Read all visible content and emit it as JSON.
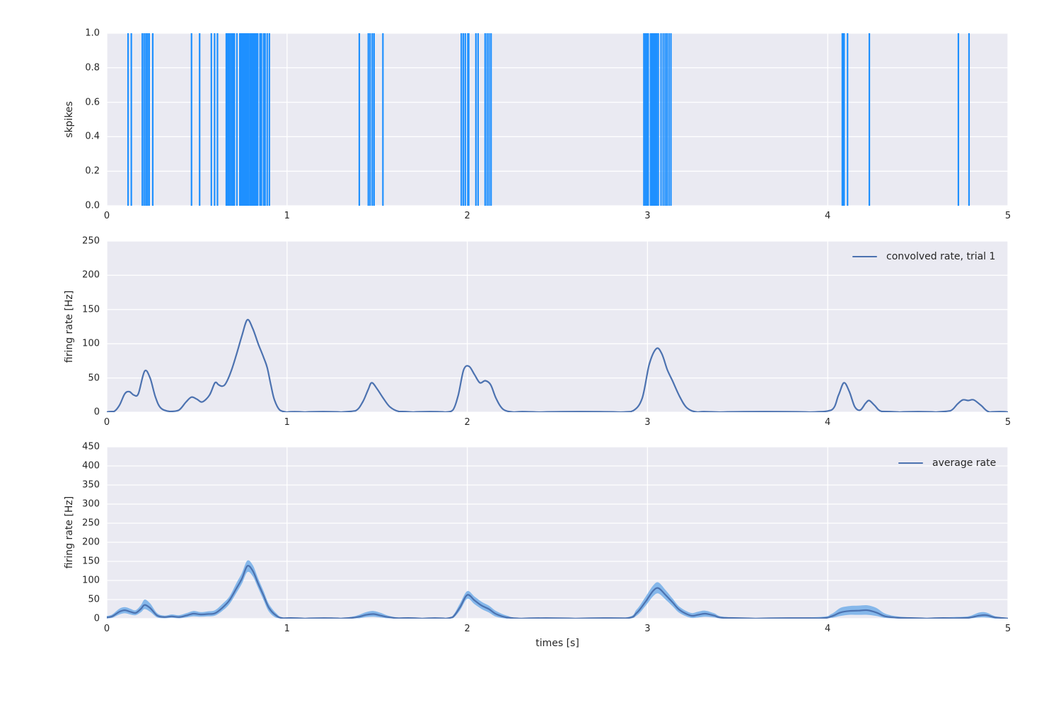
{
  "figure": {
    "background": "#ffffff",
    "axes_background": "#EAEAF2",
    "grid_color": "#ffffff",
    "text_color": "#262626",
    "xlabel": "times [s]"
  },
  "chart_data": [
    {
      "type": "event",
      "title": "",
      "ylabel": "skpikes",
      "xlim": [
        0,
        5
      ],
      "ylim": [
        0,
        1
      ],
      "xticks": [
        0,
        1,
        2,
        3,
        4,
        5
      ],
      "xtick_labels": [
        "0",
        "1",
        "2",
        "3",
        "4",
        "5"
      ],
      "yticks": [
        0,
        0.2,
        0.4,
        0.6,
        0.8,
        1.0
      ],
      "ytick_labels": [
        "0.0",
        "0.2",
        "0.4",
        "0.6",
        "0.8",
        "1.0"
      ],
      "grid": true,
      "spike_color": "#1E90FF",
      "spike_times": [
        0.118,
        0.136,
        0.197,
        0.207,
        0.217,
        0.226,
        0.235,
        0.255,
        0.47,
        0.515,
        0.58,
        0.598,
        0.614,
        0.663,
        0.67,
        0.676,
        0.682,
        0.69,
        0.698,
        0.703,
        0.708,
        0.722,
        0.738,
        0.744,
        0.75,
        0.756,
        0.762,
        0.768,
        0.774,
        0.78,
        0.786,
        0.794,
        0.8,
        0.806,
        0.812,
        0.818,
        0.824,
        0.83,
        0.837,
        0.85,
        0.858,
        0.87,
        0.878,
        0.89,
        0.902,
        1.401,
        1.451,
        1.461,
        1.473,
        1.483,
        1.532,
        1.967,
        1.978,
        1.989,
        2.003,
        2.008,
        2.048,
        2.06,
        2.099,
        2.11,
        2.121,
        2.132,
        2.98,
        2.988,
        2.996,
        3.004,
        3.017,
        3.024,
        3.031,
        3.038,
        3.045,
        3.052,
        3.06,
        3.075,
        3.087,
        3.098,
        3.108,
        3.119,
        3.13,
        4.081,
        4.086,
        4.091,
        4.11,
        4.231,
        4.725,
        4.784
      ]
    },
    {
      "type": "line",
      "title": "",
      "ylabel": "firing rate [Hz]",
      "legend": "convolved rate, trial 1",
      "legend_position": "upper right",
      "xlim": [
        0,
        5
      ],
      "ylim": [
        0,
        250
      ],
      "xticks": [
        0,
        1,
        2,
        3,
        4,
        5
      ],
      "xtick_labels": [
        "0",
        "1",
        "2",
        "3",
        "4",
        "5"
      ],
      "yticks": [
        0,
        50,
        100,
        150,
        200,
        250
      ],
      "ytick_labels": [
        "0",
        "50",
        "100",
        "150",
        "200",
        "250"
      ],
      "grid": true,
      "line_color": "#4C72B0",
      "x": [
        0,
        0.04,
        0.07,
        0.1,
        0.125,
        0.15,
        0.175,
        0.21,
        0.24,
        0.27,
        0.3,
        0.35,
        0.4,
        0.44,
        0.47,
        0.5,
        0.53,
        0.57,
        0.6,
        0.62,
        0.64,
        0.66,
        0.69,
        0.72,
        0.75,
        0.78,
        0.81,
        0.84,
        0.87,
        0.89,
        0.91,
        0.93,
        0.96,
        1.0,
        1.1,
        1.3,
        1.38,
        1.42,
        1.45,
        1.47,
        1.5,
        1.53,
        1.57,
        1.62,
        1.7,
        1.88,
        1.92,
        1.95,
        1.98,
        2.01,
        2.04,
        2.07,
        2.1,
        2.13,
        2.16,
        2.2,
        2.26,
        2.4,
        2.85,
        2.92,
        2.97,
        3.01,
        3.05,
        3.08,
        3.11,
        3.14,
        3.18,
        3.22,
        3.28,
        3.4,
        3.9,
        4.02,
        4.06,
        4.09,
        4.12,
        4.15,
        4.18,
        4.21,
        4.23,
        4.26,
        4.3,
        4.4,
        4.6,
        4.68,
        4.72,
        4.75,
        4.78,
        4.81,
        4.85,
        4.9,
        5.0
      ],
      "y": [
        0,
        1,
        10,
        27,
        30,
        25,
        27,
        60,
        50,
        22,
        6,
        1,
        3,
        15,
        22,
        19,
        15,
        25,
        43,
        40,
        38,
        42,
        60,
        85,
        112,
        135,
        122,
        100,
        80,
        65,
        40,
        18,
        3,
        0,
        0,
        0,
        2,
        15,
        33,
        43,
        34,
        22,
        8,
        1,
        0,
        0,
        3,
        25,
        62,
        67,
        55,
        43,
        46,
        40,
        20,
        4,
        0,
        0,
        0,
        2,
        20,
        70,
        93,
        85,
        62,
        45,
        22,
        6,
        0,
        0,
        0,
        3,
        25,
        43,
        30,
        8,
        3,
        13,
        17,
        10,
        1,
        0,
        0,
        2,
        12,
        18,
        17,
        18,
        10,
        0,
        0
      ]
    },
    {
      "type": "band-line",
      "title": "",
      "ylabel": "firing rate [Hz]",
      "legend": "average rate",
      "legend_position": "upper right",
      "xlim": [
        0,
        5
      ],
      "ylim": [
        0,
        450
      ],
      "xticks": [
        0,
        1,
        2,
        3,
        4,
        5
      ],
      "xtick_labels": [
        "0",
        "1",
        "2",
        "3",
        "4",
        "5"
      ],
      "yticks": [
        0,
        50,
        100,
        150,
        200,
        250,
        300,
        350,
        400,
        450
      ],
      "ytick_labels": [
        "0",
        "50",
        "100",
        "150",
        "200",
        "250",
        "300",
        "350",
        "400",
        "450"
      ],
      "grid": true,
      "line_color": "#4C72B0",
      "band_color": "#85B7EA",
      "x": [
        0,
        0.03,
        0.07,
        0.1,
        0.13,
        0.16,
        0.19,
        0.21,
        0.24,
        0.28,
        0.32,
        0.36,
        0.4,
        0.44,
        0.48,
        0.52,
        0.56,
        0.6,
        0.64,
        0.68,
        0.72,
        0.75,
        0.78,
        0.81,
        0.84,
        0.87,
        0.9,
        0.94,
        0.98,
        1.1,
        1.3,
        1.36,
        1.4,
        1.44,
        1.48,
        1.52,
        1.56,
        1.62,
        1.75,
        1.88,
        1.92,
        1.96,
        2.0,
        2.04,
        2.08,
        2.12,
        2.16,
        2.22,
        2.3,
        2.6,
        2.88,
        2.94,
        2.99,
        3.03,
        3.06,
        3.1,
        3.14,
        3.18,
        3.24,
        3.28,
        3.32,
        3.37,
        3.42,
        3.6,
        3.95,
        4.02,
        4.07,
        4.12,
        4.17,
        4.22,
        4.27,
        4.32,
        4.4,
        4.55,
        4.7,
        4.78,
        4.84,
        4.88,
        4.93,
        5.0
      ],
      "mean": [
        3,
        6,
        18,
        22,
        18,
        15,
        26,
        36,
        28,
        8,
        4,
        6,
        4,
        8,
        13,
        11,
        12,
        14,
        28,
        48,
        80,
        105,
        138,
        125,
        92,
        60,
        28,
        8,
        1,
        0,
        0,
        2,
        5,
        10,
        12,
        8,
        4,
        1,
        0,
        0,
        4,
        30,
        62,
        48,
        34,
        25,
        12,
        3,
        0,
        0,
        1,
        15,
        45,
        72,
        80,
        62,
        42,
        22,
        8,
        10,
        13,
        8,
        2,
        0,
        1,
        6,
        16,
        20,
        21,
        22,
        16,
        6,
        2,
        0,
        1,
        2,
        8,
        9,
        3,
        0
      ],
      "lo": [
        0,
        2,
        11,
        14,
        11,
        9,
        17,
        25,
        18,
        3,
        1,
        2,
        1,
        3,
        6,
        5,
        6,
        8,
        20,
        38,
        68,
        92,
        122,
        111,
        80,
        48,
        18,
        2,
        0,
        0,
        0,
        0,
        1,
        4,
        5,
        3,
        1,
        0,
        0,
        0,
        1,
        22,
        52,
        38,
        25,
        16,
        5,
        0,
        0,
        0,
        0,
        8,
        34,
        58,
        66,
        50,
        32,
        14,
        2,
        3,
        5,
        3,
        0,
        0,
        0,
        2,
        7,
        10,
        10,
        10,
        7,
        2,
        0,
        0,
        0,
        0,
        3,
        3,
        0,
        0
      ],
      "hi": [
        7,
        11,
        26,
        30,
        26,
        22,
        36,
        50,
        40,
        14,
        8,
        11,
        9,
        14,
        20,
        17,
        19,
        22,
        38,
        58,
        94,
        120,
        152,
        140,
        105,
        72,
        38,
        14,
        3,
        1,
        2,
        5,
        10,
        17,
        20,
        15,
        8,
        3,
        1,
        1,
        8,
        40,
        72,
        58,
        44,
        34,
        20,
        8,
        1,
        1,
        3,
        24,
        58,
        86,
        95,
        75,
        52,
        30,
        15,
        18,
        21,
        14,
        5,
        1,
        4,
        12,
        28,
        33,
        34,
        35,
        28,
        13,
        5,
        2,
        4,
        6,
        16,
        16,
        6,
        2
      ]
    }
  ]
}
